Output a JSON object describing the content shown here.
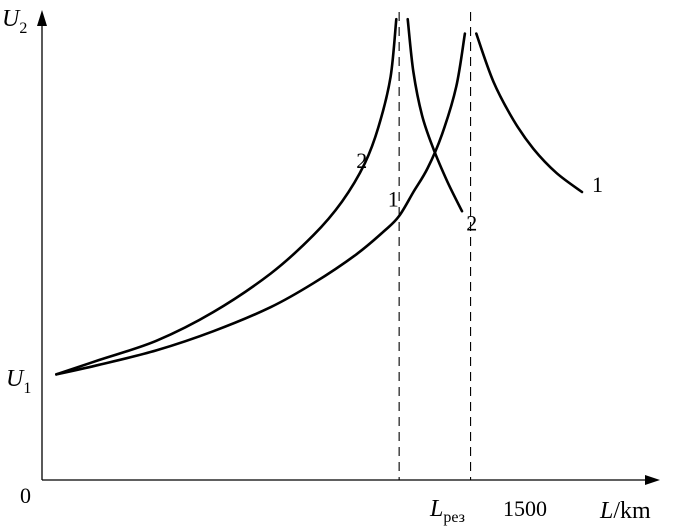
{
  "chart_data": {
    "type": "line",
    "title": "",
    "xlabel": {
      "symbol": "L",
      "separator": "/",
      "unit": "km"
    },
    "ylabel": {
      "symbol": "U",
      "subscript": "2"
    },
    "origin_label": "0",
    "y_start_label": {
      "symbol": "U",
      "subscript": "1"
    },
    "x_ticks": [
      {
        "symbol": "L",
        "subscript": "рез",
        "x": 1250
      },
      {
        "text": "1500",
        "x": 1500
      }
    ],
    "xlim": [
      0,
      2100
    ],
    "ylim": [
      0,
      1.0
    ],
    "grid": false,
    "legend": "curve labels",
    "series": [
      {
        "name": "1",
        "segments": [
          {
            "x": [
              50,
              200,
              400,
              600,
              800,
              950,
              1100,
              1200,
              1250,
              1300,
              1350,
              1400,
              1450,
              1480
            ],
            "y": [
              0.22,
              0.24,
              0.27,
              0.31,
              0.36,
              0.41,
              0.47,
              0.52,
              0.55,
              0.6,
              0.65,
              0.72,
              0.82,
              0.93
            ]
          },
          {
            "x": [
              1520,
              1580,
              1650,
              1720,
              1800,
              1890
            ],
            "y": [
              0.93,
              0.83,
              0.75,
              0.69,
              0.64,
              0.6
            ]
          }
        ]
      },
      {
        "name": "2",
        "segments": [
          {
            "x": [
              50,
              200,
              400,
              600,
              800,
              950,
              1050,
              1130,
              1180,
              1220,
              1240
            ],
            "y": [
              0.22,
              0.25,
              0.29,
              0.35,
              0.43,
              0.51,
              0.58,
              0.66,
              0.74,
              0.84,
              0.96
            ]
          },
          {
            "x": [
              1280,
              1300,
              1330,
              1370,
              1420,
              1470
            ],
            "y": [
              0.96,
              0.85,
              0.76,
              0.69,
              0.62,
              0.56
            ]
          }
        ]
      }
    ],
    "curve_labels": [
      {
        "text": "2",
        "x": 1100,
        "y": 0.65
      },
      {
        "text": "1",
        "x": 1210,
        "y": 0.57
      },
      {
        "text": "2",
        "x": 1485,
        "y": 0.52
      },
      {
        "text": "1",
        "x": 1925,
        "y": 0.6
      }
    ],
    "reference_lines": [
      {
        "x": 1250,
        "style": "dashed"
      },
      {
        "x": 1500,
        "style": "dashed"
      }
    ]
  }
}
